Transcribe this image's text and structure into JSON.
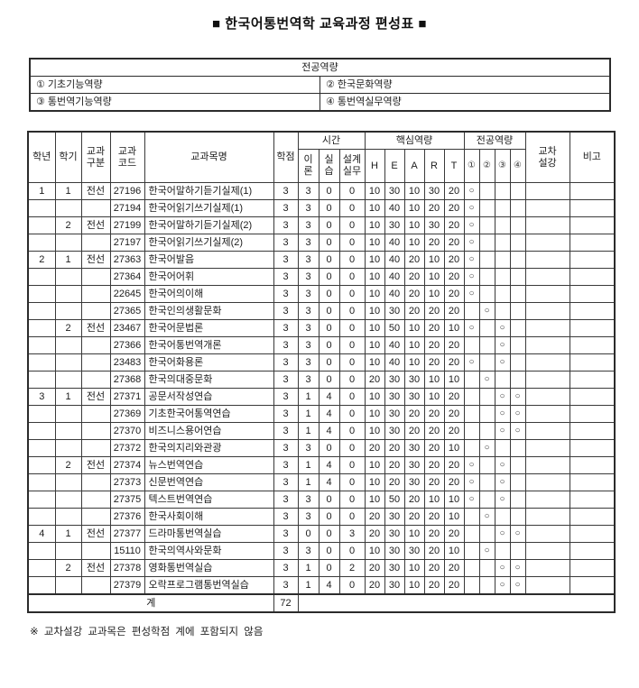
{
  "page": {
    "title": "■ 한국어통번역학 교육과정 편성표 ■",
    "footnote": "※ 교차설강 교과목은 편성학점 계에 포함되지 않음"
  },
  "competency_table": {
    "title": "전공역량",
    "rows": [
      {
        "left": "① 기초기능역량",
        "right": "② 한국문화역량"
      },
      {
        "left": "③ 통번역기능역량",
        "right": "④ 통번역실무역량"
      }
    ]
  },
  "curriculum_table": {
    "headers": {
      "grade": "학년",
      "semester": "학기",
      "course_type": "교과\n구분",
      "course_code": "교과\n코드",
      "course_name": "교과목명",
      "credits": "학점",
      "time_group": "시간",
      "time_theory": "이\n론",
      "time_practice": "실\n습",
      "time_design": "설계\n실무",
      "core_group": "핵심역량",
      "core_cols": [
        "H",
        "E",
        "A",
        "R",
        "T"
      ],
      "major_group": "전공역량",
      "major_cols": [
        "①",
        "②",
        "③",
        "④"
      ],
      "cross_listed": "교차\n설강",
      "remarks": "비고"
    },
    "rows": [
      {
        "grade": "1",
        "semester": "1",
        "type": "전선",
        "code": "27196",
        "name": "한국어말하기듣기실제(1)",
        "credits": "3",
        "theory": "3",
        "practice": "0",
        "design": "0",
        "h": "10",
        "e": "30",
        "a": "10",
        "r": "30",
        "t": "20",
        "m1": "○",
        "m2": "",
        "m3": "",
        "m4": "",
        "cross": "",
        "remarks": ""
      },
      {
        "grade": "",
        "semester": "",
        "type": "",
        "code": "27194",
        "name": "한국어읽기쓰기실제(1)",
        "credits": "3",
        "theory": "3",
        "practice": "0",
        "design": "0",
        "h": "10",
        "e": "40",
        "a": "10",
        "r": "20",
        "t": "20",
        "m1": "○",
        "m2": "",
        "m3": "",
        "m4": "",
        "cross": "",
        "remarks": ""
      },
      {
        "grade": "",
        "semester": "2",
        "type": "전선",
        "code": "27199",
        "name": "한국어말하기듣기실제(2)",
        "credits": "3",
        "theory": "3",
        "practice": "0",
        "design": "0",
        "h": "10",
        "e": "30",
        "a": "10",
        "r": "30",
        "t": "20",
        "m1": "○",
        "m2": "",
        "m3": "",
        "m4": "",
        "cross": "",
        "remarks": ""
      },
      {
        "grade": "",
        "semester": "",
        "type": "",
        "code": "27197",
        "name": "한국어읽기쓰기실제(2)",
        "credits": "3",
        "theory": "3",
        "practice": "0",
        "design": "0",
        "h": "10",
        "e": "40",
        "a": "10",
        "r": "20",
        "t": "20",
        "m1": "○",
        "m2": "",
        "m3": "",
        "m4": "",
        "cross": "",
        "remarks": ""
      },
      {
        "grade": "2",
        "semester": "1",
        "type": "전선",
        "code": "27363",
        "name": "한국어발음",
        "credits": "3",
        "theory": "3",
        "practice": "0",
        "design": "0",
        "h": "10",
        "e": "40",
        "a": "20",
        "r": "10",
        "t": "20",
        "m1": "○",
        "m2": "",
        "m3": "",
        "m4": "",
        "cross": "",
        "remarks": ""
      },
      {
        "grade": "",
        "semester": "",
        "type": "",
        "code": "27364",
        "name": "한국어어휘",
        "credits": "3",
        "theory": "3",
        "practice": "0",
        "design": "0",
        "h": "10",
        "e": "40",
        "a": "20",
        "r": "10",
        "t": "20",
        "m1": "○",
        "m2": "",
        "m3": "",
        "m4": "",
        "cross": "",
        "remarks": ""
      },
      {
        "grade": "",
        "semester": "",
        "type": "",
        "code": "22645",
        "name": "한국어의이해",
        "credits": "3",
        "theory": "3",
        "practice": "0",
        "design": "0",
        "h": "10",
        "e": "40",
        "a": "20",
        "r": "10",
        "t": "20",
        "m1": "○",
        "m2": "",
        "m3": "",
        "m4": "",
        "cross": "",
        "remarks": ""
      },
      {
        "grade": "",
        "semester": "",
        "type": "",
        "code": "27365",
        "name": "한국인의생활문화",
        "credits": "3",
        "theory": "3",
        "practice": "0",
        "design": "0",
        "h": "10",
        "e": "30",
        "a": "20",
        "r": "20",
        "t": "20",
        "m1": "",
        "m2": "○",
        "m3": "",
        "m4": "",
        "cross": "",
        "remarks": ""
      },
      {
        "grade": "",
        "semester": "2",
        "type": "전선",
        "code": "23467",
        "name": "한국어문법론",
        "credits": "3",
        "theory": "3",
        "practice": "0",
        "design": "0",
        "h": "10",
        "e": "50",
        "a": "10",
        "r": "20",
        "t": "10",
        "m1": "○",
        "m2": "",
        "m3": "○",
        "m4": "",
        "cross": "",
        "remarks": ""
      },
      {
        "grade": "",
        "semester": "",
        "type": "",
        "code": "27366",
        "name": "한국어통번역개론",
        "credits": "3",
        "theory": "3",
        "practice": "0",
        "design": "0",
        "h": "10",
        "e": "40",
        "a": "10",
        "r": "20",
        "t": "20",
        "m1": "",
        "m2": "",
        "m3": "○",
        "m4": "",
        "cross": "",
        "remarks": ""
      },
      {
        "grade": "",
        "semester": "",
        "type": "",
        "code": "23483",
        "name": "한국어화용론",
        "credits": "3",
        "theory": "3",
        "practice": "0",
        "design": "0",
        "h": "10",
        "e": "40",
        "a": "10",
        "r": "20",
        "t": "20",
        "m1": "○",
        "m2": "",
        "m3": "○",
        "m4": "",
        "cross": "",
        "remarks": ""
      },
      {
        "grade": "",
        "semester": "",
        "type": "",
        "code": "27368",
        "name": "한국의대중문화",
        "credits": "3",
        "theory": "3",
        "practice": "0",
        "design": "0",
        "h": "20",
        "e": "30",
        "a": "30",
        "r": "10",
        "t": "10",
        "m1": "",
        "m2": "○",
        "m3": "",
        "m4": "",
        "cross": "",
        "remarks": ""
      },
      {
        "grade": "3",
        "semester": "1",
        "type": "전선",
        "code": "27371",
        "name": "공문서작성연습",
        "credits": "3",
        "theory": "1",
        "practice": "4",
        "design": "0",
        "h": "10",
        "e": "30",
        "a": "30",
        "r": "10",
        "t": "20",
        "m1": "",
        "m2": "",
        "m3": "○",
        "m4": "○",
        "cross": "",
        "remarks": ""
      },
      {
        "grade": "",
        "semester": "",
        "type": "",
        "code": "27369",
        "name": "기초한국어통역연습",
        "credits": "3",
        "theory": "1",
        "practice": "4",
        "design": "0",
        "h": "10",
        "e": "30",
        "a": "20",
        "r": "20",
        "t": "20",
        "m1": "",
        "m2": "",
        "m3": "○",
        "m4": "○",
        "cross": "",
        "remarks": ""
      },
      {
        "grade": "",
        "semester": "",
        "type": "",
        "code": "27370",
        "name": "비즈니스용어연습",
        "credits": "3",
        "theory": "1",
        "practice": "4",
        "design": "0",
        "h": "10",
        "e": "30",
        "a": "20",
        "r": "20",
        "t": "20",
        "m1": "",
        "m2": "",
        "m3": "○",
        "m4": "○",
        "cross": "",
        "remarks": ""
      },
      {
        "grade": "",
        "semester": "",
        "type": "",
        "code": "27372",
        "name": "한국의지리와관광",
        "credits": "3",
        "theory": "3",
        "practice": "0",
        "design": "0",
        "h": "20",
        "e": "20",
        "a": "30",
        "r": "20",
        "t": "10",
        "m1": "",
        "m2": "○",
        "m3": "",
        "m4": "",
        "cross": "",
        "remarks": ""
      },
      {
        "grade": "",
        "semester": "2",
        "type": "전선",
        "code": "27374",
        "name": "뉴스번역연습",
        "credits": "3",
        "theory": "1",
        "practice": "4",
        "design": "0",
        "h": "10",
        "e": "20",
        "a": "30",
        "r": "20",
        "t": "20",
        "m1": "○",
        "m2": "",
        "m3": "○",
        "m4": "",
        "cross": "",
        "remarks": ""
      },
      {
        "grade": "",
        "semester": "",
        "type": "",
        "code": "27373",
        "name": "신문번역연습",
        "credits": "3",
        "theory": "1",
        "practice": "4",
        "design": "0",
        "h": "10",
        "e": "20",
        "a": "30",
        "r": "20",
        "t": "20",
        "m1": "○",
        "m2": "",
        "m3": "○",
        "m4": "",
        "cross": "",
        "remarks": ""
      },
      {
        "grade": "",
        "semester": "",
        "type": "",
        "code": "27375",
        "name": "텍스트번역연습",
        "credits": "3",
        "theory": "3",
        "practice": "0",
        "design": "0",
        "h": "10",
        "e": "50",
        "a": "20",
        "r": "10",
        "t": "10",
        "m1": "○",
        "m2": "",
        "m3": "○",
        "m4": "",
        "cross": "",
        "remarks": ""
      },
      {
        "grade": "",
        "semester": "",
        "type": "",
        "code": "27376",
        "name": "한국사회이해",
        "credits": "3",
        "theory": "3",
        "practice": "0",
        "design": "0",
        "h": "20",
        "e": "30",
        "a": "20",
        "r": "20",
        "t": "10",
        "m1": "",
        "m2": "○",
        "m3": "",
        "m4": "",
        "cross": "",
        "remarks": ""
      },
      {
        "grade": "4",
        "semester": "1",
        "type": "전선",
        "code": "27377",
        "name": "드라마통번역실습",
        "credits": "3",
        "theory": "0",
        "practice": "0",
        "design": "3",
        "h": "20",
        "e": "30",
        "a": "10",
        "r": "20",
        "t": "20",
        "m1": "",
        "m2": "",
        "m3": "○",
        "m4": "○",
        "cross": "",
        "remarks": ""
      },
      {
        "grade": "",
        "semester": "",
        "type": "",
        "code": "15110",
        "name": "한국의역사와문화",
        "credits": "3",
        "theory": "3",
        "practice": "0",
        "design": "0",
        "h": "10",
        "e": "30",
        "a": "30",
        "r": "20",
        "t": "10",
        "m1": "",
        "m2": "○",
        "m3": "",
        "m4": "",
        "cross": "",
        "remarks": ""
      },
      {
        "grade": "",
        "semester": "2",
        "type": "전선",
        "code": "27378",
        "name": "영화통번역실습",
        "credits": "3",
        "theory": "1",
        "practice": "0",
        "design": "2",
        "h": "20",
        "e": "30",
        "a": "10",
        "r": "20",
        "t": "20",
        "m1": "",
        "m2": "",
        "m3": "○",
        "m4": "○",
        "cross": "",
        "remarks": ""
      },
      {
        "grade": "",
        "semester": "",
        "type": "",
        "code": "27379",
        "name": "오락프로그램통번역실습",
        "credits": "3",
        "theory": "1",
        "practice": "4",
        "design": "0",
        "h": "20",
        "e": "30",
        "a": "10",
        "r": "20",
        "t": "20",
        "m1": "",
        "m2": "",
        "m3": "○",
        "m4": "○",
        "cross": "",
        "remarks": ""
      }
    ],
    "total": {
      "label": "계",
      "credits": "72"
    }
  }
}
